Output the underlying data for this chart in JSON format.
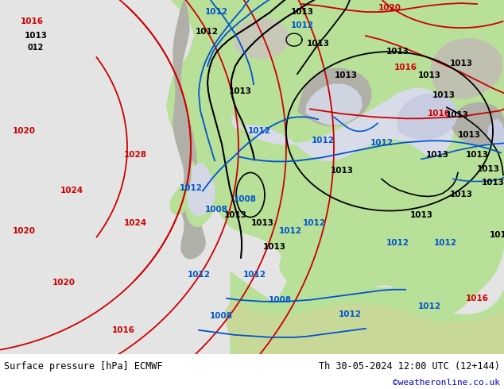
{
  "title_left": "Surface pressure [hPa] ECMWF",
  "title_right": "Th 30-05-2024 12:00 UTC (12+144)",
  "watermark": "©weatheronline.co.uk",
  "fig_width": 6.34,
  "fig_height": 4.9,
  "dpi": 100,
  "ocean_color": "#e8e8e8",
  "land_color": "#b8e0a0",
  "terrain_color": "#b0b0b0",
  "footer_bg": "#e0e0e0",
  "red_isobar_color": "#cc0000",
  "black_isobar_color": "#000000",
  "blue_isobar_color": "#0055cc"
}
